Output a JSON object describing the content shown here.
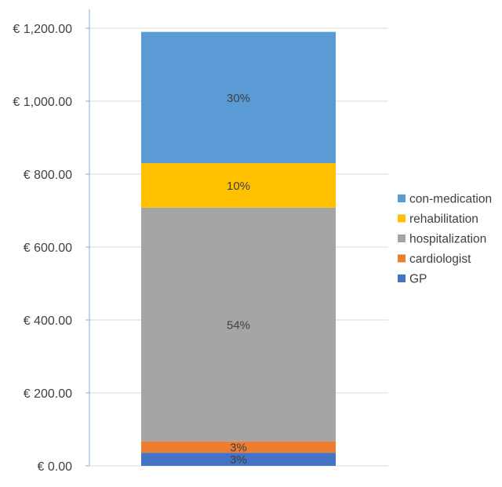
{
  "chart_data": {
    "type": "bar",
    "stacked": true,
    "categories": [
      ""
    ],
    "series": [
      {
        "name": "GP",
        "values": [
          36
        ],
        "label": "3%",
        "color": "#4472C4"
      },
      {
        "name": "cardiologist",
        "values": [
          31
        ],
        "label": "3%",
        "color": "#ED7D31"
      },
      {
        "name": "hospitalization",
        "values": [
          641
        ],
        "label": "54%",
        "color": "#A5A5A5"
      },
      {
        "name": "rehabilitation",
        "values": [
          122
        ],
        "label": "10%",
        "color": "#FFC000"
      },
      {
        "name": "con-medication",
        "values": [
          360
        ],
        "label": "30%",
        "color": "#5B9BD5"
      }
    ],
    "yticks": [
      0,
      200,
      400,
      600,
      800,
      1000,
      1200
    ],
    "ytick_labels": [
      "€ 0.00",
      "€ 200.00",
      "€ 400.00",
      "€ 600.00",
      "€ 800.00",
      "€ 1,000.00",
      "€ 1,200.00"
    ],
    "ylim": [
      0,
      1200
    ],
    "grid": true,
    "legend_position": "right",
    "legend_order": [
      "con-medication",
      "rehabilitation",
      "hospitalization",
      "cardiologist",
      "GP"
    ],
    "title": "",
    "xlabel": "",
    "ylabel": ""
  }
}
